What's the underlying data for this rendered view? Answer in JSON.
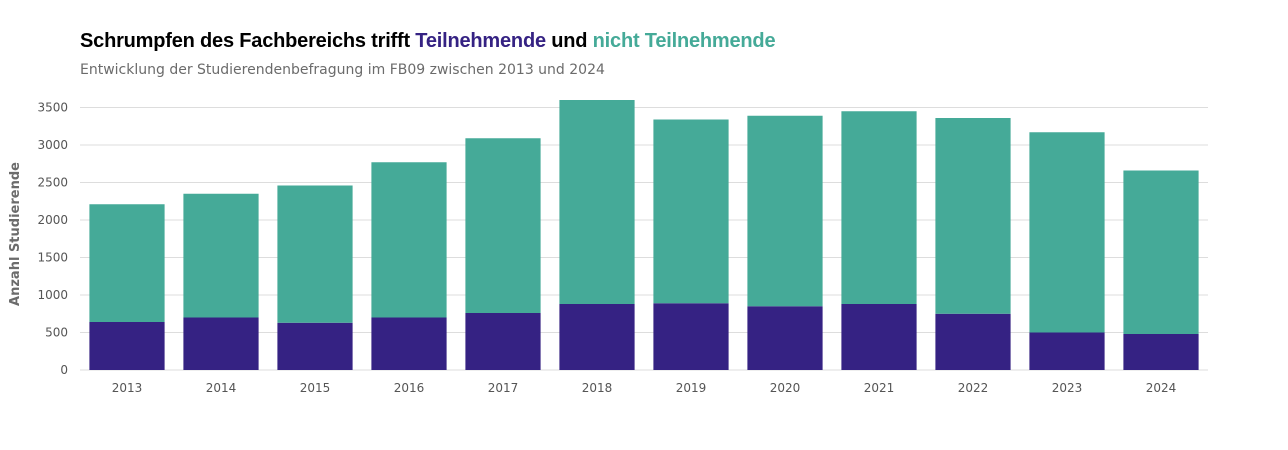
{
  "chart_data": {
    "type": "bar",
    "stacked": true,
    "title": {
      "prefix": "Schrumpfen des Fachbereichs trifft ",
      "part1": "Teilnehmende",
      "connector": " und ",
      "part2": "nicht Teilnehmende"
    },
    "subtitle": "Entwicklung der Studierendenbefragung im FB09 zwischen 2013 und 2024",
    "xlabel": "",
    "ylabel": "Anzahl Studierende",
    "ylim": [
      0,
      3600
    ],
    "yticks": [
      0,
      500,
      1000,
      1500,
      2000,
      2500,
      3000,
      3500
    ],
    "grid": true,
    "categories": [
      "2013",
      "2014",
      "2015",
      "2016",
      "2017",
      "2018",
      "2019",
      "2020",
      "2021",
      "2022",
      "2023",
      "2024"
    ],
    "series": [
      {
        "name": "Teilnehmende",
        "color": "#352283",
        "values": [
          640,
          700,
          630,
          700,
          760,
          880,
          890,
          850,
          880,
          750,
          500,
          480
        ]
      },
      {
        "name": "nicht Teilnehmende",
        "color": "#45aa98",
        "values": [
          1570,
          1650,
          1830,
          2070,
          2330,
          2720,
          2450,
          2540,
          2570,
          2610,
          2670,
          2180
        ]
      }
    ]
  }
}
